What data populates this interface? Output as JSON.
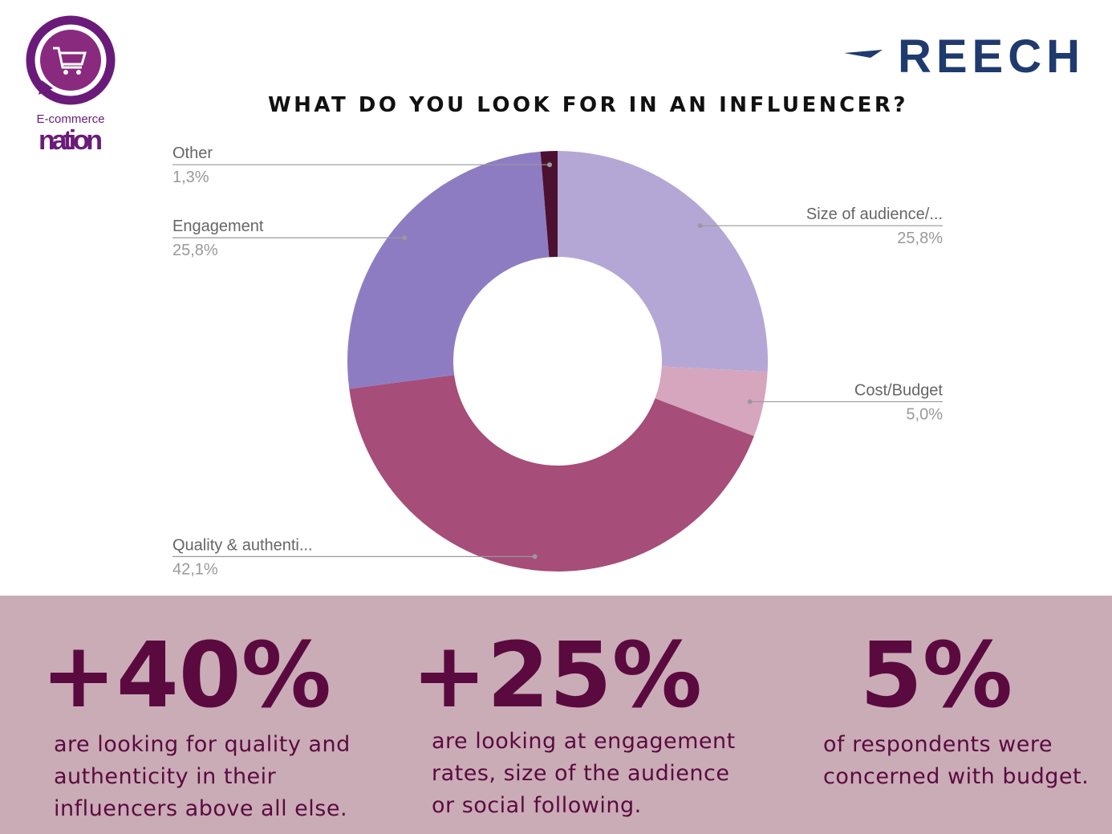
{
  "logo": {
    "line1": "E-commerce",
    "line2": "nation"
  },
  "brand": "REECH",
  "chart_data": {
    "type": "donut",
    "title": "WHAT DO YOU LOOK FOR IN AN INFLUENCER?",
    "categories": [
      "Size of audience/...",
      "Cost/Budget",
      "Quality & authenti...",
      "Engagement",
      "Other"
    ],
    "values": [
      25.8,
      5.0,
      42.1,
      25.8,
      1.3
    ],
    "value_labels": [
      "25,8%",
      "5,0%",
      "42,1%",
      "25,8%",
      "1,3%"
    ],
    "colors": [
      "#b4a7d6",
      "#d5a6bd",
      "#a64d79",
      "#8e7cc3",
      "#4c1130"
    ]
  },
  "stats": [
    {
      "figure": "+40%",
      "lines": [
        "are looking for quality and",
        "authenticity in their",
        "influencers above all else."
      ]
    },
    {
      "figure": "+25%",
      "lines": [
        "are looking at engagement",
        "rates,  size of the audience",
        "or social following."
      ]
    },
    {
      "figure": "5%",
      "lines": [
        "of respondents were",
        "concerned with budget."
      ]
    }
  ]
}
